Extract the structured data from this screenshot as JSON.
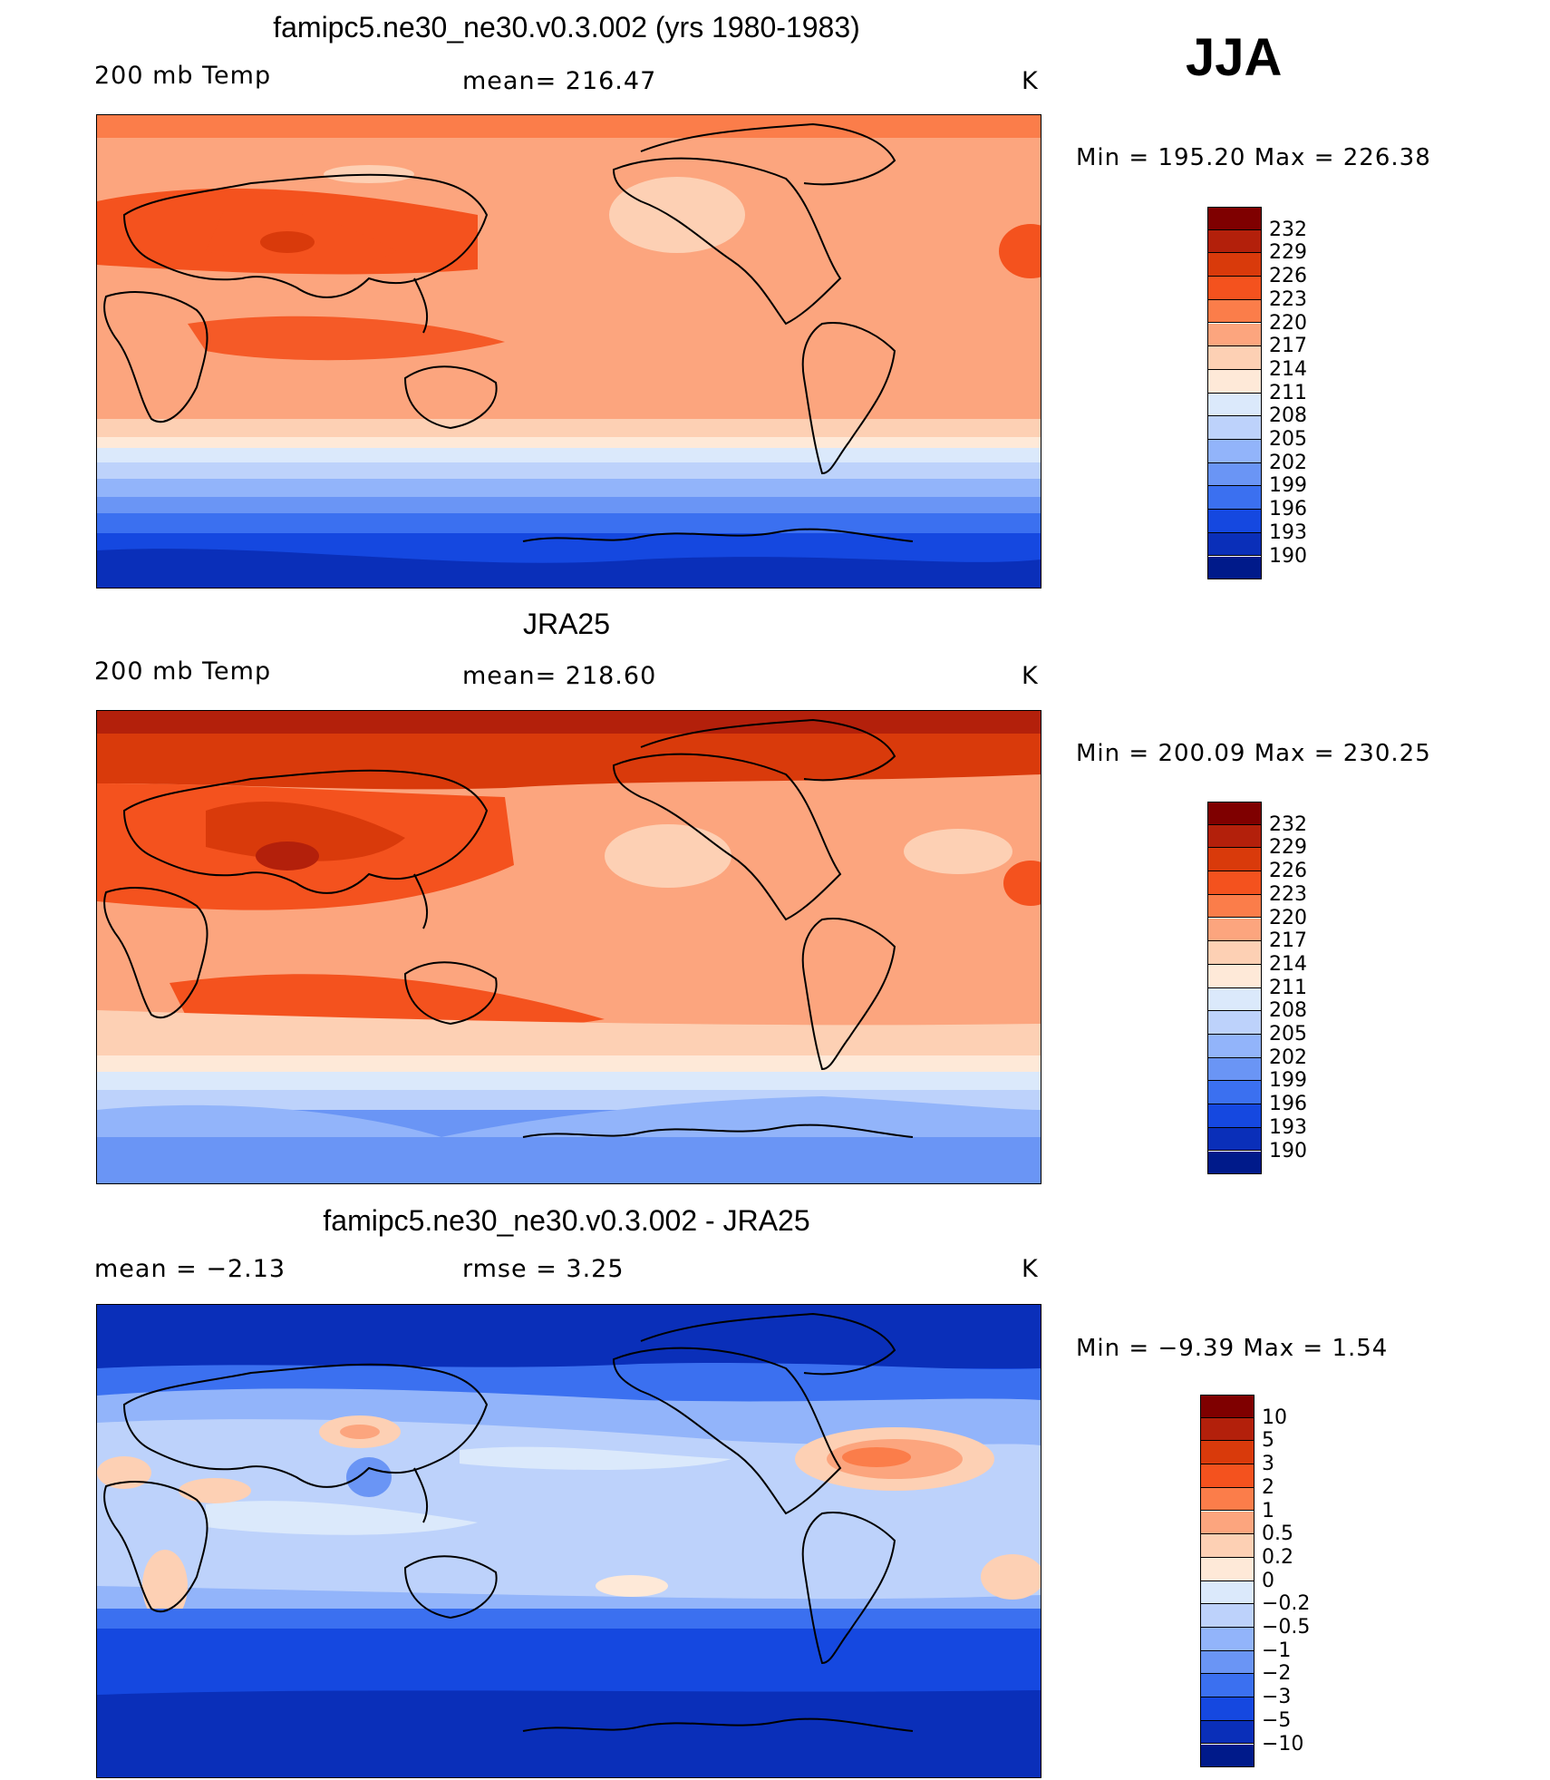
{
  "season": "JJA",
  "panels": [
    {
      "title": "famipc5.ne30_ne30.v0.3.002 (yrs 1980-1983)",
      "left_label": "200 mb Temp",
      "center_label": "mean= 216.47",
      "units": "K",
      "minmax": "Min  =  195.20  Max  =  226.38",
      "colorbar": {
        "labels": [
          "232",
          "229",
          "226",
          "223",
          "220",
          "217",
          "214",
          "211",
          "208",
          "205",
          "202",
          "199",
          "196",
          "193",
          "190"
        ],
        "colors": [
          "#7f0000",
          "#b3200b",
          "#d93a0b",
          "#f4521e",
          "#fb7d4a",
          "#fca57e",
          "#fdd0b4",
          "#fee9d8",
          "#dbe9fb",
          "#bdd2fb",
          "#92b4fa",
          "#6a95f5",
          "#3b70f0",
          "#1548e0",
          "#0a2fb9",
          "#001a8a"
        ]
      }
    },
    {
      "title": "JRA25",
      "left_label": "200 mb Temp",
      "center_label": "mean= 218.60",
      "units": "K",
      "minmax": "Min  =  200.09  Max  =  230.25",
      "colorbar": {
        "labels": [
          "232",
          "229",
          "226",
          "223",
          "220",
          "217",
          "214",
          "211",
          "208",
          "205",
          "202",
          "199",
          "196",
          "193",
          "190"
        ],
        "colors": [
          "#7f0000",
          "#b3200b",
          "#d93a0b",
          "#f4521e",
          "#fb7d4a",
          "#fca57e",
          "#fdd0b4",
          "#fee9d8",
          "#dbe9fb",
          "#bdd2fb",
          "#92b4fa",
          "#6a95f5",
          "#3b70f0",
          "#1548e0",
          "#0a2fb9",
          "#001a8a"
        ]
      }
    },
    {
      "title": "famipc5.ne30_ne30.v0.3.002 - JRA25",
      "left_label": "mean  =    −2.13",
      "center_label": "rmse  =     3.25",
      "units": "K",
      "minmax": "Min  =   −9.39  Max  =     1.54",
      "colorbar": {
        "labels": [
          "10",
          "5",
          "3",
          "2",
          "1",
          "0.5",
          "0.2",
          "0",
          "−0.2",
          "−0.5",
          "−1",
          "−2",
          "−3",
          "−5",
          "−10"
        ],
        "colors": [
          "#7f0000",
          "#b3200b",
          "#d93a0b",
          "#f4521e",
          "#fb7d4a",
          "#fca57e",
          "#fdd0b4",
          "#fee9d8",
          "#dbe9fb",
          "#bdd2fb",
          "#92b4fa",
          "#6a95f5",
          "#3b70f0",
          "#1548e0",
          "#0a2fb9",
          "#001a8a"
        ]
      }
    }
  ]
}
